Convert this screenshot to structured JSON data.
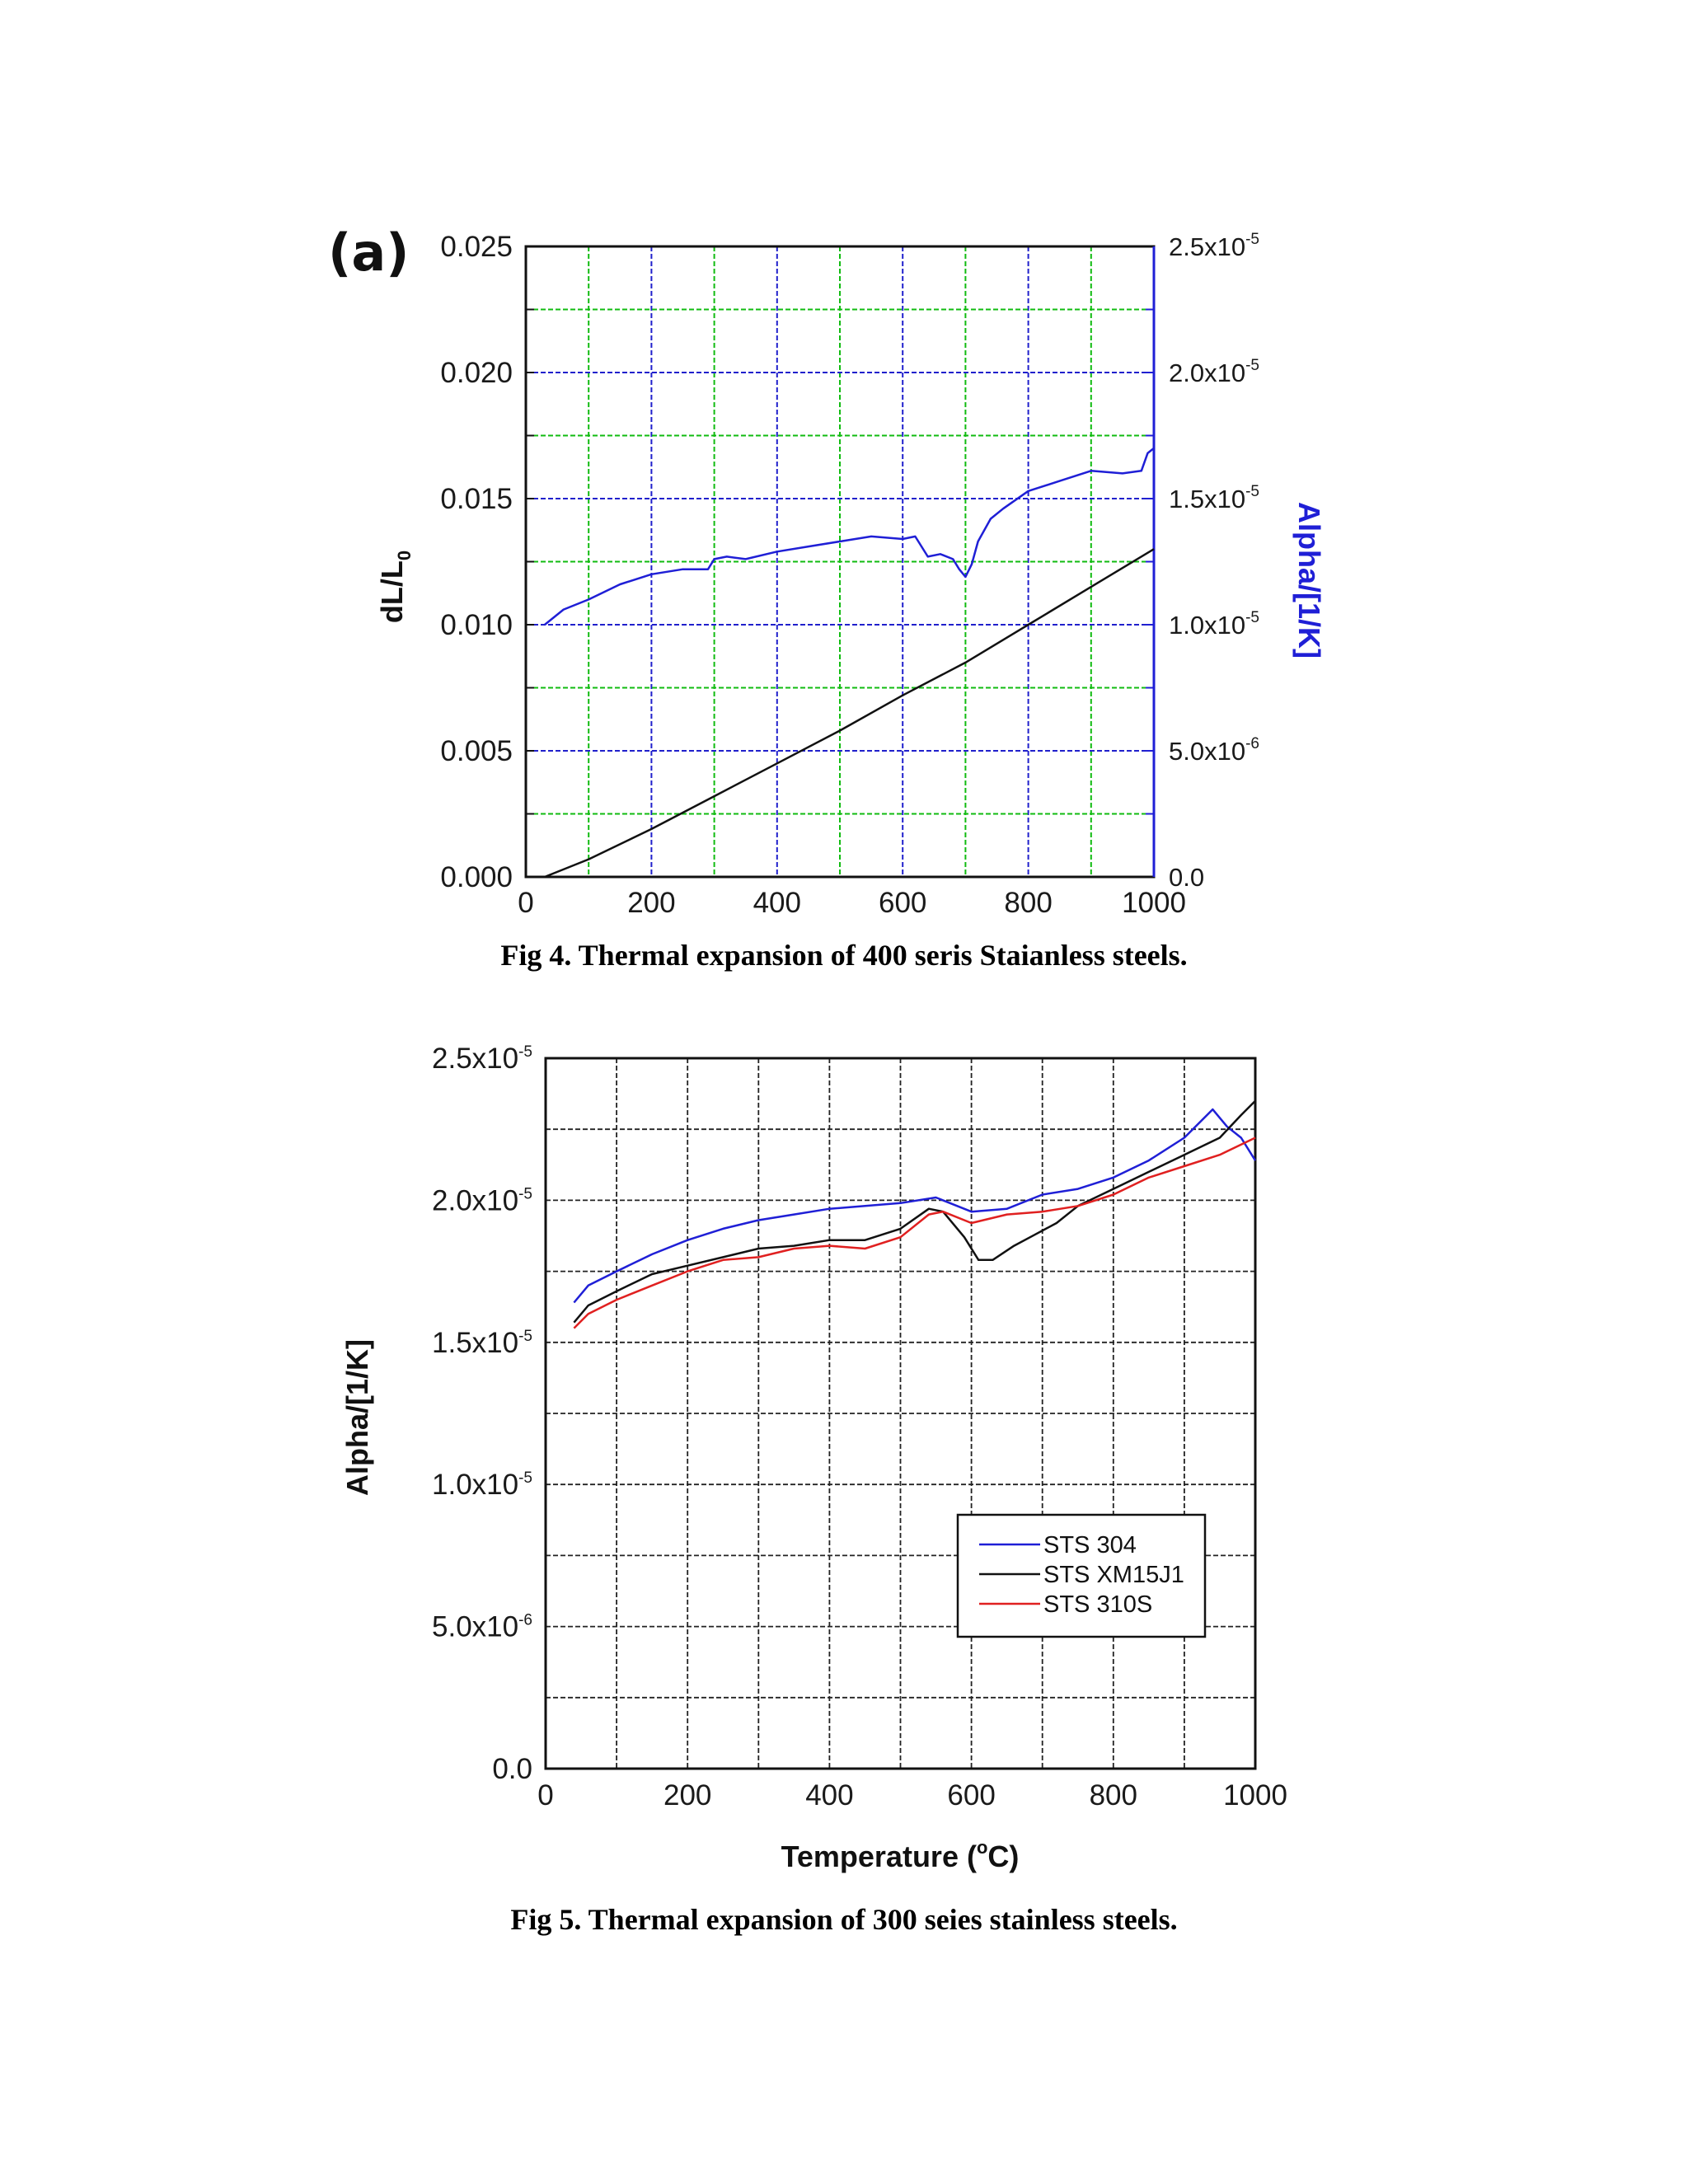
{
  "figure4": {
    "panel_label": "(a)",
    "caption": "Fig 4. Thermal expansion of 400 seris Staianless steels."
  },
  "figure5": {
    "caption": "Fig 5. Thermal expansion of 300 seies stainless steels."
  },
  "colors": {
    "blue": "#1f1fd6",
    "black": "#111111",
    "red": "#e02020",
    "green_grid": "#11bb11"
  },
  "chart_data": [
    {
      "type": "line",
      "title": "",
      "xlabel": "",
      "xlim": [
        0,
        1000
      ],
      "xticks": [
        "0",
        "200",
        "400",
        "600",
        "800",
        "1000"
      ],
      "ylabel_left": "dL/L0",
      "ylim_left": [
        0,
        0.025
      ],
      "yticks_left": [
        "0.000",
        "0.005",
        "0.010",
        "0.015",
        "0.020",
        "0.025"
      ],
      "ylabel_right": "Alpha/[1/K]",
      "ylim_right": [
        0,
        2.5e-05
      ],
      "yticks_right": [
        {
          "mant": "0.0",
          "exp": ""
        },
        {
          "mant": "5.0x10",
          "exp": "-6"
        },
        {
          "mant": "1.0x10",
          "exp": "-5"
        },
        {
          "mant": "1.5x10",
          "exp": "-5"
        },
        {
          "mant": "2.0x10",
          "exp": "-5"
        },
        {
          "mant": "2.5x10",
          "exp": "-5"
        }
      ],
      "grid": true,
      "series": [
        {
          "name": "dL/L0",
          "axis": "left",
          "color": "#111111",
          "x": [
            30,
            100,
            200,
            300,
            400,
            500,
            600,
            700,
            800,
            900,
            1000
          ],
          "y": [
            0.0,
            0.0007,
            0.0019,
            0.0032,
            0.0045,
            0.0058,
            0.0072,
            0.0085,
            0.01,
            0.0115,
            0.013
          ]
        },
        {
          "name": "Alpha/[1/K]",
          "axis": "right",
          "color": "#1f1fd6",
          "x": [
            30,
            60,
            100,
            150,
            200,
            250,
            290,
            300,
            320,
            350,
            400,
            450,
            500,
            550,
            600,
            620,
            640,
            660,
            680,
            690,
            700,
            710,
            720,
            740,
            760,
            800,
            850,
            900,
            950,
            980,
            990,
            1000
          ],
          "y": [
            1e-05,
            1.06e-05,
            1.1e-05,
            1.16e-05,
            1.2e-05,
            1.22e-05,
            1.22e-05,
            1.26e-05,
            1.27e-05,
            1.26e-05,
            1.29e-05,
            1.31e-05,
            1.33e-05,
            1.35e-05,
            1.34e-05,
            1.35e-05,
            1.27e-05,
            1.28e-05,
            1.26e-05,
            1.22e-05,
            1.19e-05,
            1.24e-05,
            1.33e-05,
            1.42e-05,
            1.46e-05,
            1.53e-05,
            1.57e-05,
            1.61e-05,
            1.6e-05,
            1.61e-05,
            1.68e-05,
            1.7e-05
          ]
        }
      ]
    },
    {
      "type": "line",
      "title": "",
      "xlabel_prefix": "Temperature (",
      "xlabel_sup": "o",
      "xlabel_suffix": "C)",
      "ylabel": "Alpha/[1/K]",
      "xlim": [
        0,
        1000
      ],
      "xticks": [
        "0",
        "200",
        "400",
        "600",
        "800",
        "1000"
      ],
      "ylim": [
        0,
        2.5e-05
      ],
      "yticks": [
        {
          "mant": "0.0",
          "exp": ""
        },
        {
          "mant": "5.0x10",
          "exp": "-6"
        },
        {
          "mant": "1.0x10",
          "exp": "-5"
        },
        {
          "mant": "1.5x10",
          "exp": "-5"
        },
        {
          "mant": "2.0x10",
          "exp": "-5"
        },
        {
          "mant": "2.5x10",
          "exp": "-5"
        }
      ],
      "grid": true,
      "legend": "inside bottom-right",
      "series": [
        {
          "name": "STS 304",
          "color": "#1f1fd6",
          "x": [
            40,
            60,
            100,
            150,
            200,
            250,
            300,
            350,
            400,
            450,
            500,
            550,
            600,
            650,
            700,
            750,
            800,
            850,
            900,
            940,
            960,
            980,
            1000
          ],
          "y": [
            1.64e-05,
            1.7e-05,
            1.75e-05,
            1.81e-05,
            1.86e-05,
            1.9e-05,
            1.93e-05,
            1.95e-05,
            1.97e-05,
            1.98e-05,
            1.99e-05,
            2.01e-05,
            1.96e-05,
            1.97e-05,
            2.02e-05,
            2.04e-05,
            2.08e-05,
            2.14e-05,
            2.22e-05,
            2.32e-05,
            2.26e-05,
            2.22e-05,
            2.14e-05
          ]
        },
        {
          "name": "STS XM15J1",
          "color": "#111111",
          "x": [
            40,
            60,
            100,
            150,
            200,
            250,
            300,
            350,
            400,
            450,
            500,
            540,
            560,
            590,
            610,
            630,
            660,
            690,
            720,
            750,
            800,
            850,
            900,
            950,
            980,
            1000
          ],
          "y": [
            1.57e-05,
            1.63e-05,
            1.68e-05,
            1.74e-05,
            1.77e-05,
            1.8e-05,
            1.83e-05,
            1.84e-05,
            1.86e-05,
            1.86e-05,
            1.9e-05,
            1.97e-05,
            1.96e-05,
            1.87e-05,
            1.79e-05,
            1.79e-05,
            1.84e-05,
            1.88e-05,
            1.92e-05,
            1.98e-05,
            2.04e-05,
            2.1e-05,
            2.16e-05,
            2.22e-05,
            2.3e-05,
            2.35e-05
          ]
        },
        {
          "name": "STS 310S",
          "color": "#e02020",
          "x": [
            40,
            60,
            100,
            150,
            200,
            250,
            300,
            350,
            400,
            450,
            500,
            540,
            560,
            600,
            650,
            700,
            750,
            800,
            850,
            900,
            950,
            1000
          ],
          "y": [
            1.55e-05,
            1.6e-05,
            1.65e-05,
            1.7e-05,
            1.75e-05,
            1.79e-05,
            1.8e-05,
            1.83e-05,
            1.84e-05,
            1.83e-05,
            1.87e-05,
            1.95e-05,
            1.96e-05,
            1.92e-05,
            1.95e-05,
            1.96e-05,
            1.98e-05,
            2.02e-05,
            2.08e-05,
            2.12e-05,
            2.16e-05,
            2.22e-05
          ]
        }
      ]
    }
  ]
}
